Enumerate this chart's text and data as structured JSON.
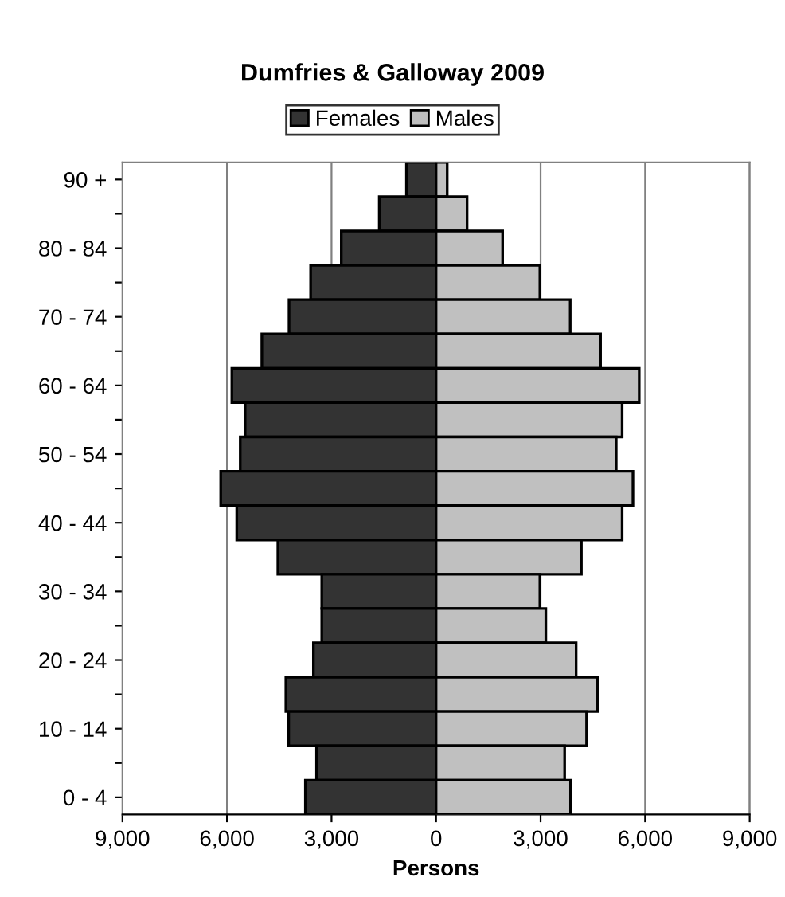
{
  "chart_data": {
    "type": "bar",
    "title": "Dumfries & Galloway 2009",
    "xlabel": "Persons",
    "orientation": "horizontal",
    "stacked": true,
    "categories": [
      "90 +",
      null,
      "80 - 84",
      null,
      "70 - 74",
      null,
      "60 - 64",
      null,
      "50 - 54",
      null,
      "40 - 44",
      null,
      "30 - 34",
      null,
      "20 - 24",
      null,
      "10 - 14",
      null,
      "0 - 4"
    ],
    "series": [
      {
        "name": "Females",
        "color": "#333333",
        "values": [
          -850,
          -1630,
          -2720,
          -3600,
          -4220,
          -5000,
          -5860,
          -5480,
          -5620,
          -6180,
          -5720,
          -4540,
          -3280,
          -3280,
          -3520,
          -4310,
          -4230,
          -3430,
          -3750
        ]
      },
      {
        "name": "Males",
        "color": "#c0c0c0",
        "values": [
          320,
          890,
          1910,
          2980,
          3850,
          4720,
          5830,
          5340,
          5170,
          5650,
          5340,
          4170,
          2980,
          3150,
          4020,
          4630,
          4320,
          3690,
          3860
        ]
      }
    ],
    "xlim": [
      -9000,
      9000
    ],
    "xticks": [
      {
        "value": -9000,
        "label": "9,000"
      },
      {
        "value": -6000,
        "label": "6,000"
      },
      {
        "value": -3000,
        "label": "3,000"
      },
      0,
      {
        "value": 3000,
        "label": "3,000"
      },
      {
        "value": 6000,
        "label": "6,000"
      },
      {
        "value": 9000,
        "label": "9,000"
      }
    ],
    "grid": "x",
    "legend": "top"
  }
}
